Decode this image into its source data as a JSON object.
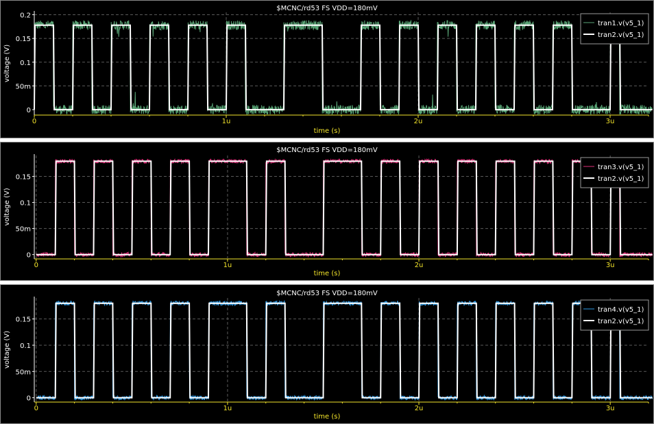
{
  "chart_data": [
    {
      "type": "line",
      "title": "$MCNC/rd53 FS VDD=180mV",
      "xlabel": "time (s)",
      "ylabel": "voltage (V)",
      "xlim": [
        0,
        3.2
      ],
      "ylim": [
        -0.01,
        0.205
      ],
      "x_unit": "us",
      "x_ticks": [
        {
          "v": 0,
          "label": "0"
        },
        {
          "v": 1,
          "label": "1u"
        },
        {
          "v": 2,
          "label": "2u"
        },
        {
          "v": 3,
          "label": "3u"
        }
      ],
      "y_ticks": [
        {
          "v": 0,
          "label": "0"
        },
        {
          "v": 0.05,
          "label": "50m"
        },
        {
          "v": 0.1,
          "label": "0.1"
        },
        {
          "v": 0.15,
          "label": "0.15"
        },
        {
          "v": 0.2,
          "label": "0.2"
        }
      ],
      "grid": true,
      "legend_position": "top-right",
      "high_level": 0.178,
      "low_level": 0.0,
      "series": [
        {
          "name": "tran1.v(v5_1)",
          "color": "#5aa677",
          "noise": 0.01,
          "spikes": true
        },
        {
          "name": "tran2.v(v5_1)",
          "color": "#ffffff",
          "noise": 0.0
        }
      ],
      "pulses": [
        [
          0.0,
          0.1
        ],
        [
          0.2,
          0.3
        ],
        [
          0.4,
          0.5
        ],
        [
          0.6,
          0.7
        ],
        [
          0.8,
          0.9
        ],
        [
          1.0,
          1.1
        ],
        [
          1.3,
          1.5
        ],
        [
          1.7,
          1.8
        ],
        [
          1.9,
          2.0
        ],
        [
          2.1,
          2.2
        ],
        [
          2.3,
          2.4
        ],
        [
          2.5,
          2.6
        ],
        [
          2.7,
          2.8
        ],
        [
          3.0,
          3.05
        ]
      ]
    },
    {
      "type": "line",
      "title": "$MCNC/rd53 FS VDD=180mV",
      "xlabel": "time (s)",
      "ylabel": "voltage (V)",
      "xlim": [
        -0.01,
        3.2
      ],
      "ylim": [
        -0.007,
        0.19
      ],
      "x_unit": "us",
      "x_ticks": [
        {
          "v": 0,
          "label": "0"
        },
        {
          "v": 1,
          "label": "1u"
        },
        {
          "v": 2,
          "label": "2u"
        },
        {
          "v": 3,
          "label": "3u"
        }
      ],
      "y_ticks": [
        {
          "v": 0,
          "label": "0"
        },
        {
          "v": 0.05,
          "label": "50m"
        },
        {
          "v": 0.1,
          "label": "0.1"
        },
        {
          "v": 0.15,
          "label": "0.15"
        }
      ],
      "grid": true,
      "legend_position": "top-right",
      "high_level": 0.179,
      "low_level": 0.0,
      "series": [
        {
          "name": "tran3.v(v5_1)",
          "color": "#e0307a",
          "noise": 0.004,
          "spikes": false
        },
        {
          "name": "tran2.v(v5_1)",
          "color": "#ffffff",
          "noise": 0.0
        }
      ],
      "pulses": [
        [
          0.1,
          0.2
        ],
        [
          0.3,
          0.4
        ],
        [
          0.5,
          0.6
        ],
        [
          0.7,
          0.8
        ],
        [
          0.9,
          1.1
        ],
        [
          1.2,
          1.3
        ],
        [
          1.5,
          1.7
        ],
        [
          1.8,
          1.9
        ],
        [
          2.0,
          2.1
        ],
        [
          2.2,
          2.3
        ],
        [
          2.4,
          2.5
        ],
        [
          2.6,
          2.7
        ],
        [
          2.8,
          2.9
        ],
        [
          3.0,
          3.05
        ]
      ]
    },
    {
      "type": "line",
      "title": "$MCNC/rd53 FS VDD=180mV",
      "xlabel": "time (s)",
      "ylabel": "voltage (V)",
      "xlim": [
        -0.01,
        3.2
      ],
      "ylim": [
        -0.007,
        0.19
      ],
      "x_unit": "us",
      "x_ticks": [
        {
          "v": 0,
          "label": "0"
        },
        {
          "v": 1,
          "label": "1u"
        },
        {
          "v": 2,
          "label": "2u"
        },
        {
          "v": 3,
          "label": "3u"
        }
      ],
      "y_ticks": [
        {
          "v": 0,
          "label": "0"
        },
        {
          "v": 0.05,
          "label": "50m"
        },
        {
          "v": 0.1,
          "label": "0.1"
        },
        {
          "v": 0.15,
          "label": "0.15"
        }
      ],
      "grid": true,
      "legend_position": "top-right",
      "high_level": 0.18,
      "low_level": 0.0,
      "series": [
        {
          "name": "tran4.v(v5_1)",
          "color": "#2e9be6",
          "noise": 0.004,
          "spikes": false
        },
        {
          "name": "tran2.v(v5_1)",
          "color": "#ffffff",
          "noise": 0.0
        }
      ],
      "pulses": [
        [
          0.1,
          0.2
        ],
        [
          0.3,
          0.4
        ],
        [
          0.5,
          0.6
        ],
        [
          0.7,
          0.8
        ],
        [
          0.9,
          1.1
        ],
        [
          1.2,
          1.3
        ],
        [
          1.5,
          1.7
        ],
        [
          1.8,
          1.9
        ],
        [
          2.0,
          2.1
        ],
        [
          2.2,
          2.3
        ],
        [
          2.4,
          2.5
        ],
        [
          2.6,
          2.7
        ],
        [
          2.8,
          2.9
        ],
        [
          3.0,
          3.05
        ]
      ]
    }
  ]
}
